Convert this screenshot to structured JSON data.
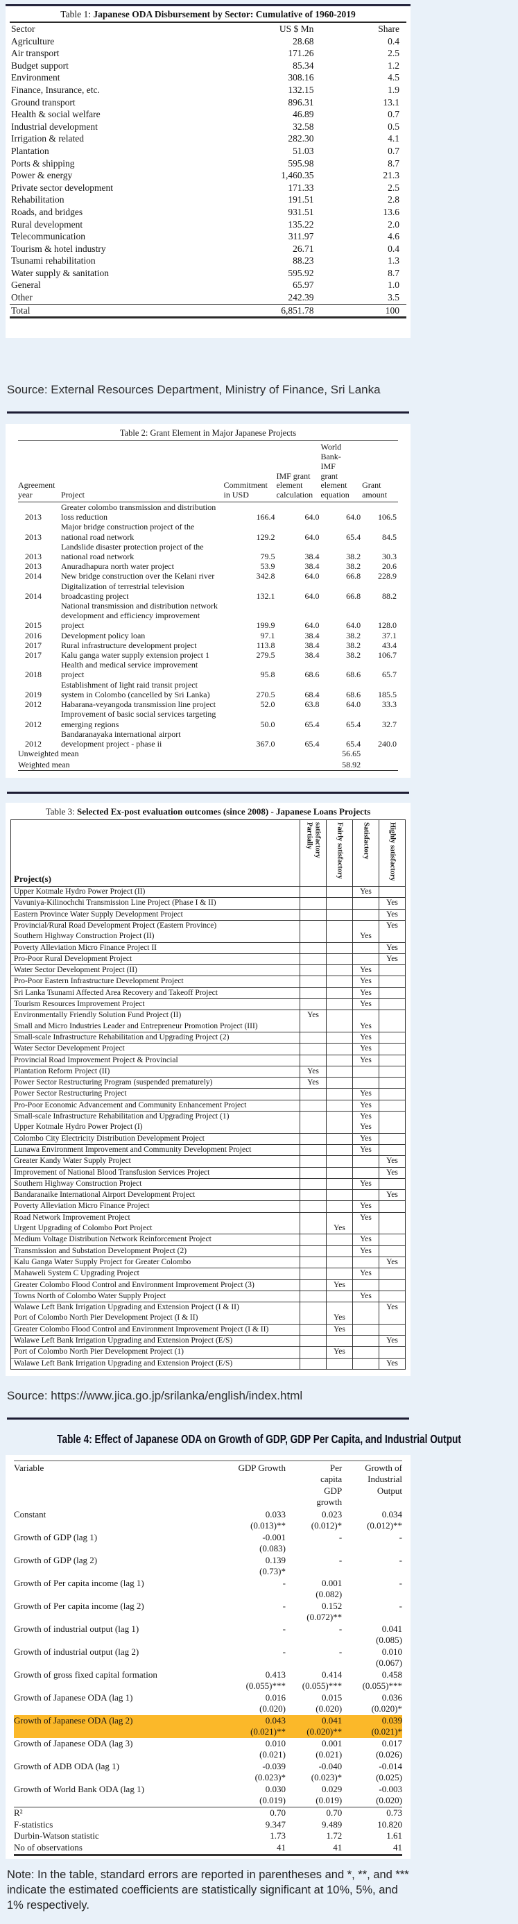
{
  "source1": "Source: External Resources Department, Ministry of Finance, Sri Lanka",
  "source2": "Source: https://www.jica.go.jp/srilanka/english/index.html",
  "note": "Note: In the table, standard errors are reported in parentheses and *, **, and *** indicate the estimated coefficients are statistically significant at 10%, 5%, and 1% respectively.",
  "highlight_color": "#fbb829",
  "table1": {
    "title_prefix": "Table 1: ",
    "title_main": "Japanese ODA Disbursement by Sector: Cumulative of 1960-2019",
    "columns": [
      "Sector",
      "US $ Mn",
      "Share"
    ],
    "rows": [
      [
        "Agriculture",
        "28.68",
        "0.4"
      ],
      [
        "Air transport",
        "171.26",
        "2.5"
      ],
      [
        "Budget support",
        "85.34",
        "1.2"
      ],
      [
        "Environment",
        "308.16",
        "4.5"
      ],
      [
        "Finance, Insurance, etc.",
        "132.15",
        "1.9"
      ],
      [
        "Ground transport",
        "896.31",
        "13.1"
      ],
      [
        "Health & social welfare",
        "46.89",
        "0.7"
      ],
      [
        "Industrial development",
        "32.58",
        "0.5"
      ],
      [
        "Irrigation & related",
        "282.30",
        "4.1"
      ],
      [
        "Plantation",
        "51.03",
        "0.7"
      ],
      [
        "Ports & shipping",
        "595.98",
        "8.7"
      ],
      [
        "Power & energy",
        "1,460.35",
        "21.3"
      ],
      [
        "Private sector development",
        "171.33",
        "2.5"
      ],
      [
        "Rehabilitation",
        "191.51",
        "2.8"
      ],
      [
        "Roads, and bridges",
        "931.51",
        "13.6"
      ],
      [
        "Rural development",
        "135.22",
        "2.0"
      ],
      [
        "Telecommunication",
        "311.97",
        "4.6"
      ],
      [
        "Tourism & hotel industry",
        "26.71",
        "0.4"
      ],
      [
        "Tsunami rehabilitation",
        "88.23",
        "1.3"
      ],
      [
        "Water supply & sanitation",
        "595.92",
        "8.7"
      ],
      [
        "General",
        "65.97",
        "1.0"
      ],
      [
        "Other",
        "242.39",
        "3.5"
      ]
    ],
    "total": [
      "Total",
      "6,851.78",
      "100"
    ]
  },
  "table2": {
    "title": "Table 2: Grant Element in Major Japanese Projects",
    "columns": [
      "Agreement year",
      "Project",
      "Commitment in USD",
      "IMF grant element calculation",
      "World Bank-IMF grant element equation",
      "Grant amount"
    ],
    "rows": [
      {
        "year": "2013",
        "project": "Greater colombo transmission and distribution loss reduction",
        "commitment": "166.4",
        "imf": "64.0",
        "wb": "64.0",
        "grant": "106.5"
      },
      {
        "year": "2013",
        "project": "Major bridge construction project of the national road network",
        "commitment": "129.2",
        "imf": "64.0",
        "wb": "65.4",
        "grant": "84.5"
      },
      {
        "year": "2013",
        "project": "Landslide disaster protection project of the national road network",
        "commitment": "79.5",
        "imf": "38.4",
        "wb": "38.2",
        "grant": "30.3"
      },
      {
        "year": "2013",
        "project": "Anuradhapura north water project",
        "commitment": "53.9",
        "imf": "38.4",
        "wb": "38.2",
        "grant": "20.6"
      },
      {
        "year": "2014",
        "project": "New bridge construction over the Kelani river",
        "commitment": "342.8",
        "imf": "64.0",
        "wb": "66.8",
        "grant": "228.9"
      },
      {
        "year": "2014",
        "project": "Digitalization of terrestrial television broadcasting project",
        "commitment": "132.1",
        "imf": "64.0",
        "wb": "66.8",
        "grant": "88.2"
      },
      {
        "year": "2015",
        "project": "National transmission and distribution network development and efficiency improvement project",
        "commitment": "199.9",
        "imf": "64.0",
        "wb": "64.0",
        "grant": "128.0"
      },
      {
        "year": "2016",
        "project": "Development policy loan",
        "commitment": "97.1",
        "imf": "38.4",
        "wb": "38.2",
        "grant": "37.1"
      },
      {
        "year": "2017",
        "project": "Rural infrastructure development project",
        "commitment": "113.8",
        "imf": "38.4",
        "wb": "38.2",
        "grant": "43.4"
      },
      {
        "year": "2017",
        "project": "Kalu ganga water supply extension project 1",
        "commitment": "279.5",
        "imf": "38.4",
        "wb": "38.2",
        "grant": "106.7"
      },
      {
        "year": "2018",
        "project": "Health and medical service improvement project",
        "commitment": "95.8",
        "imf": "68.6",
        "wb": "68.6",
        "grant": "65.7"
      },
      {
        "year": "2019",
        "project": "Establishment of light raid transit project system in Colombo (cancelled by Sri Lanka)",
        "commitment": "270.5",
        "imf": "68.4",
        "wb": "68.6",
        "grant": "185.5"
      },
      {
        "year": "2012",
        "project": "Habarana-veyangoda transmission line project",
        "commitment": "52.0",
        "imf": "63.8",
        "wb": "64.0",
        "grant": "33.3"
      },
      {
        "year": "2012",
        "project": "Improvement of basic social services targeting emerging regions",
        "commitment": "50.0",
        "imf": "65.4",
        "wb": "65.4",
        "grant": "32.7"
      },
      {
        "year": "2012",
        "project": "Bandaranayaka international airport development project - phase ii",
        "commitment": "367.0",
        "imf": "65.4",
        "wb": "65.4",
        "grant": "240.0"
      }
    ],
    "means": [
      {
        "label": "Unweighted mean",
        "value": "56.65"
      },
      {
        "label": "Weighted mean",
        "value": "58.92"
      }
    ]
  },
  "table3": {
    "title_prefix": "Table 3: ",
    "title_main": "Selected Ex-post evaluation outcomes (since 2008) - Japanese Loans Projects",
    "project_header": "Project(s)",
    "rating_columns": [
      "Partially satisfactory",
      "Fairly satisfactory",
      "Satisfactory",
      "Highly satisfactory"
    ],
    "yes_label": "Yes",
    "rows": [
      {
        "project": "Upper Kotmale Hydro Power Project (II)",
        "rating": 2
      },
      {
        "project": "Vavuniya-Kilinochchi Transmission Line Project (Phase I & II)",
        "rating": 3
      },
      {
        "project": "Eastern Province Water Supply Development Project",
        "rating": 3
      },
      {
        "project": "Provincial/Rural Road Development Project (Eastern Province)",
        "rating": 3,
        "merge": true
      },
      {
        "project": "Southern Highway Construction Project (II)",
        "rating": 2
      },
      {
        "project": "Poverty Alleviation Micro Finance Project II",
        "rating": 3
      },
      {
        "project": "Pro-Poor Rural Development Project",
        "rating": 3
      },
      {
        "project": "Water Sector Development Project (II)",
        "rating": 2
      },
      {
        "project": "Pro-Poor Eastern Infrastructure Development Project",
        "rating": 2
      },
      {
        "project": "Sri Lanka Tsunami Affected Area Recovery and Takeoff Project",
        "rating": 2
      },
      {
        "project": "Tourism Resources Improvement Project",
        "rating": 2
      },
      {
        "project": "Environmentally Friendly Solution Fund Project (II)",
        "rating": 0,
        "merge": true
      },
      {
        "project": "Small and Micro Industries Leader and Entrepreneur Promotion Project (III)",
        "rating": 2
      },
      {
        "project": "Small-scale Infrastructure Rehabilitation and Upgrading Project (2)",
        "rating": 2
      },
      {
        "project": "Water Sector Development Project",
        "rating": 2
      },
      {
        "project": "Provincial Road Improvement Project & Provincial",
        "rating": 2
      },
      {
        "project": "Plantation Reform Project (II)",
        "rating": 0
      },
      {
        "project": "Power Sector Restructuring Program (suspended prematurely)",
        "rating": 0
      },
      {
        "project": "Power Sector Restructuring Project",
        "rating": 2
      },
      {
        "project": "Pro-Poor Economic Advancement and Community Enhancement Project",
        "rating": 2
      },
      {
        "project": "Small-scale Infrastructure Rehabilitation and Upgrading Project (1)",
        "rating": 2,
        "merge": true
      },
      {
        "project": "Upper Kotmale Hydro Power Project (I)",
        "rating": 2
      },
      {
        "project": "Colombo City Electricity Distribution Development Project",
        "rating": 2
      },
      {
        "project": "Lunawa Environment Improvement and Community Development Project",
        "rating": 2
      },
      {
        "project": "Greater Kandy Water Supply Project",
        "rating": 3
      },
      {
        "project": "Improvement of National Blood Transfusion Services Project",
        "rating": 3
      },
      {
        "project": "Southern Highway Construction Project",
        "rating": 2
      },
      {
        "project": "Bandaranaike International Airport Development Project",
        "rating": 3
      },
      {
        "project": "Poverty Alleviation Micro Finance Project",
        "rating": 2
      },
      {
        "project": "Road Network Improvement Project",
        "rating": 2,
        "merge": true
      },
      {
        "project": "Urgent Upgrading of Colombo Port Project",
        "rating": 1
      },
      {
        "project": "Medium Voltage Distribution Network Reinforcement Project",
        "rating": 2
      },
      {
        "project": "Transmission and Substation Development Project (2)",
        "rating": 2
      },
      {
        "project": "Kalu Ganga Water Supply Project for Greater Colombo",
        "rating": 3
      },
      {
        "project": "Mahaweli System C Upgrading Project",
        "rating": 2
      },
      {
        "project": "Greater Colombo Flood Control and Environment Improvement Project (3)",
        "rating": 1
      },
      {
        "project": "Towns North of Colombo Water Supply Project",
        "rating": 2
      },
      {
        "project": "Walawe Left Bank Irrigation Upgrading and Extension Project (I & II)",
        "rating": 3,
        "merge": true
      },
      {
        "project": "Port of Colombo North Pier Development Project (I & II)",
        "rating": 1
      },
      {
        "project": "Greater Colombo Flood Control and Environment Improvement Project (I & II)",
        "rating": 1
      },
      {
        "project": "Walawe Left Bank Irrigation Upgrading and Extension Project (E/S)",
        "rating": 3
      },
      {
        "project": "Port of Colombo North Pier Development Project (1)",
        "rating": 1
      },
      {
        "project": "Walawe Left Bank Irrigation Upgrading and Extension Project (E/S)",
        "rating": 3
      }
    ]
  },
  "table4": {
    "title": "Table 4: Effect of Japanese ODA on Growth of GDP, GDP Per Capita, and Industrial Output",
    "columns": [
      "Variable",
      "GDP Growth",
      "Per capita GDP growth",
      "Growth of Industrial Output"
    ],
    "rows": [
      {
        "label": "Constant",
        "cols": [
          [
            "0.033",
            "(0.013)**"
          ],
          [
            "0.023",
            "(0.012)*"
          ],
          [
            "0.034",
            "(0.012)**"
          ]
        ]
      },
      {
        "label": "Growth of GDP (lag 1)",
        "cols": [
          [
            "-0.001",
            "(0.083)"
          ],
          [
            "-",
            ""
          ],
          [
            "-",
            ""
          ]
        ]
      },
      {
        "label": "Growth of GDP (lag 2)",
        "cols": [
          [
            "0.139",
            "(0.73)*"
          ],
          [
            "-",
            ""
          ],
          [
            "-",
            ""
          ]
        ]
      },
      {
        "label": "Growth of Per capita income (lag 1)",
        "cols": [
          [
            "-",
            ""
          ],
          [
            "0.001",
            "(0.082)"
          ],
          [
            "-",
            ""
          ]
        ]
      },
      {
        "label": "Growth of Per capita income (lag 2)",
        "cols": [
          [
            "-",
            ""
          ],
          [
            "0.152",
            "(0.072)**"
          ],
          [
            "-",
            ""
          ]
        ]
      },
      {
        "label": "Growth of industrial output (lag 1)",
        "cols": [
          [
            "-",
            ""
          ],
          [
            "-",
            ""
          ],
          [
            "0.041",
            "(0.085)"
          ]
        ]
      },
      {
        "label": "Growth of industrial output (lag 2)",
        "cols": [
          [
            "-",
            ""
          ],
          [
            "-",
            ""
          ],
          [
            "0.010",
            "(0.067)"
          ]
        ]
      },
      {
        "label": "Growth of gross fixed capital formation",
        "cols": [
          [
            "0.413",
            "(0.055)***"
          ],
          [
            "0.414",
            "(0.055)***"
          ],
          [
            "0.458",
            "(0.055)***"
          ]
        ]
      },
      {
        "label": "Growth of Japanese ODA (lag 1)",
        "cols": [
          [
            "0.016",
            "(0.020)"
          ],
          [
            "0.015",
            "(0.020)"
          ],
          [
            "0.036",
            "(0.020)*"
          ]
        ]
      },
      {
        "label": "Growth of Japanese ODA (lag 2)",
        "highlight": true,
        "cols": [
          [
            "0.043",
            "(0.021)**"
          ],
          [
            "0.041",
            "(0.020)**"
          ],
          [
            "0.039",
            "(0.021)*"
          ]
        ]
      },
      {
        "label": "Growth of Japanese ODA (lag 3)",
        "cols": [
          [
            "0.010",
            "(0.021)"
          ],
          [
            "0.001",
            "(0.021)"
          ],
          [
            "0.017",
            "(0.026)"
          ]
        ]
      },
      {
        "label": "Growth of ADB ODA (lag 1)",
        "cols": [
          [
            "-0.039",
            "(0.023)*"
          ],
          [
            "-0.040",
            "(0.023)*"
          ],
          [
            "-0.014",
            "(0.025)"
          ]
        ]
      },
      {
        "label": "Growth of World Bank ODA (lag 1)",
        "cols": [
          [
            "0.030",
            "(0.019)"
          ],
          [
            "0.029",
            "(0.019)"
          ],
          [
            "-0.003",
            "(0.020)"
          ]
        ]
      }
    ],
    "stats": [
      {
        "label": "R²",
        "values": [
          "0.70",
          "0.70",
          "0.73"
        ]
      },
      {
        "label": "F-statistics",
        "values": [
          "9.347",
          "9.489",
          "10.820"
        ]
      },
      {
        "label": "Durbin-Watson statistic",
        "values": [
          "1.73",
          "1.72",
          "1.61"
        ]
      },
      {
        "label": "No of observations",
        "values": [
          "41",
          "41",
          "41"
        ]
      }
    ]
  }
}
